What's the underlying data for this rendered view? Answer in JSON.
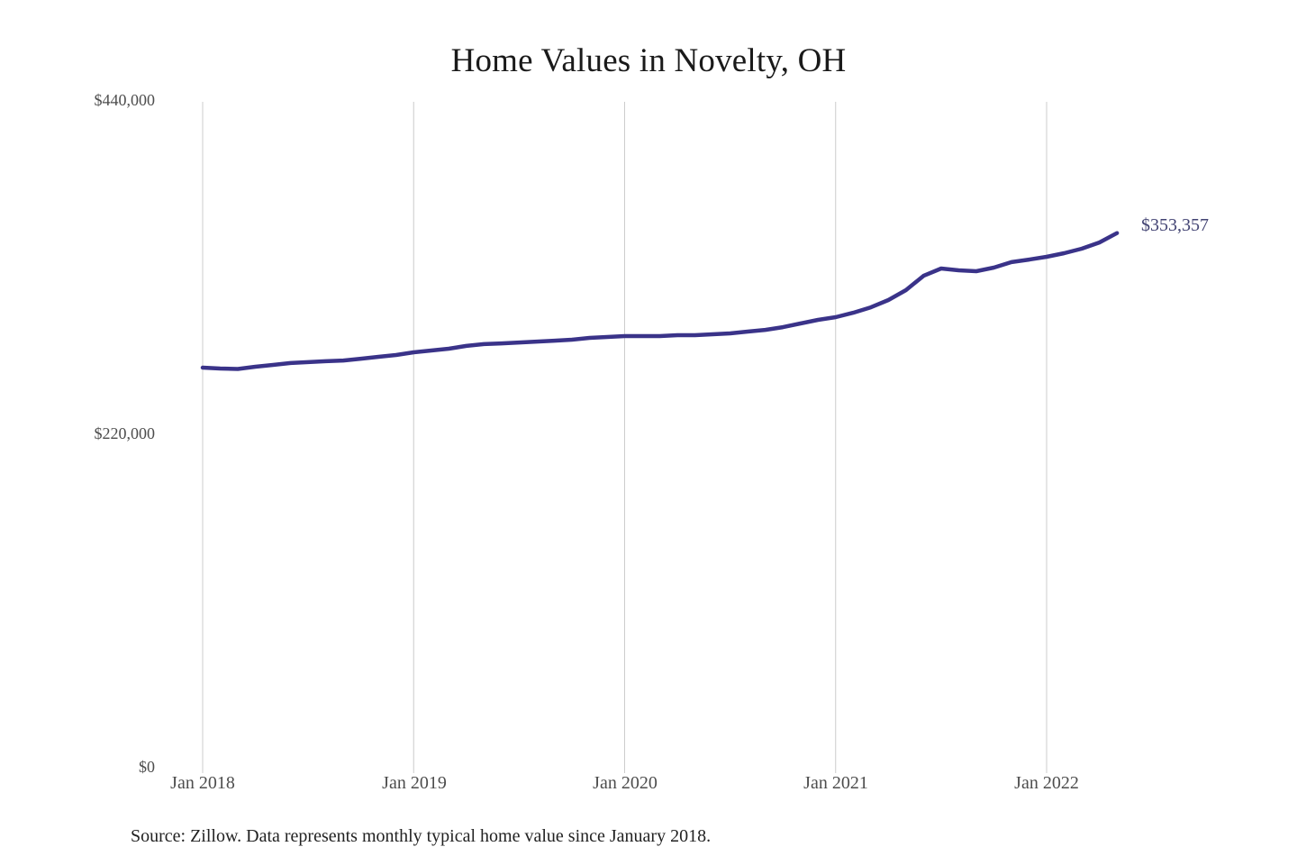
{
  "page": {
    "background": "#ffffff"
  },
  "chart_data": {
    "type": "line",
    "title": "Home Values in Novelty, OH",
    "series_name": "Monthly typical home value",
    "x": [
      "2018-01",
      "2018-02",
      "2018-03",
      "2018-04",
      "2018-05",
      "2018-06",
      "2018-07",
      "2018-08",
      "2018-09",
      "2018-10",
      "2018-11",
      "2018-12",
      "2019-01",
      "2019-02",
      "2019-03",
      "2019-04",
      "2019-05",
      "2019-06",
      "2019-07",
      "2019-08",
      "2019-09",
      "2019-10",
      "2019-11",
      "2019-12",
      "2020-01",
      "2020-02",
      "2020-03",
      "2020-04",
      "2020-05",
      "2020-06",
      "2020-07",
      "2020-08",
      "2020-09",
      "2020-10",
      "2020-11",
      "2020-12",
      "2021-01",
      "2021-02",
      "2021-03",
      "2021-04",
      "2021-05",
      "2021-06",
      "2021-07",
      "2021-08",
      "2021-09",
      "2021-10",
      "2021-11",
      "2021-12",
      "2022-01",
      "2022-02",
      "2022-03",
      "2022-04",
      "2022-05"
    ],
    "values": [
      264600,
      264000,
      263700,
      265200,
      266400,
      267600,
      268200,
      268800,
      269300,
      270500,
      271700,
      272900,
      274700,
      275900,
      277100,
      278900,
      280100,
      280600,
      281200,
      281800,
      282400,
      283000,
      284200,
      284800,
      285400,
      285400,
      285400,
      286000,
      286000,
      286600,
      287200,
      288400,
      289500,
      291300,
      293700,
      296100,
      297900,
      300800,
      304400,
      309200,
      315700,
      325200,
      330000,
      328800,
      328200,
      330600,
      334200,
      335900,
      337700,
      340100,
      343100,
      347200,
      353357
    ],
    "last_value": 353357,
    "end_label": "$353,357",
    "ylim": [
      0,
      440000
    ],
    "y_tick_values": [
      440000,
      220000,
      0
    ],
    "y_tick_labels": [
      "$440,000",
      "$220,000",
      "$0"
    ],
    "x_tick_month_indices": [
      0,
      12,
      24,
      36,
      48
    ],
    "x_tick_labels": [
      "Jan 2018",
      "Jan 2019",
      "Jan 2020",
      "Jan 2021",
      "Jan 2022"
    ],
    "grid": "vertical-only",
    "legend": "none",
    "line_color": "#3a3389",
    "grid_color": "#cccccc",
    "end_label_color": "#414272",
    "tick_label_color": "#4d4d4d"
  },
  "footer": {
    "source_text": "Source: Zillow. Data represents monthly typical home value since January 2018."
  }
}
